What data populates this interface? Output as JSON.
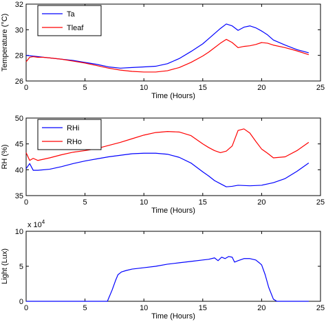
{
  "chart_data": [
    {
      "type": "line",
      "xlabel": "Time (Hours)",
      "ylabel": "Temperature (°C)",
      "xlim": [
        0,
        25
      ],
      "ylim": [
        26,
        32
      ],
      "xticks": [
        "0",
        "5",
        "10",
        "15",
        "20",
        "25"
      ],
      "yticks": [
        "26",
        "28",
        "30",
        "32"
      ],
      "legend_position": "top-left",
      "grid": false,
      "series": [
        {
          "name": "Ta",
          "color": "#0000ff",
          "x": [
            0,
            0.5,
            1,
            1.5,
            2,
            3,
            4,
            5,
            6,
            7,
            8,
            9,
            10,
            11,
            12,
            13,
            14,
            15,
            15.5,
            16,
            16.5,
            17,
            17.5,
            18,
            18.5,
            19,
            19.5,
            20,
            20.5,
            21,
            22,
            23,
            24
          ],
          "y": [
            28.0,
            27.95,
            27.9,
            27.85,
            27.8,
            27.7,
            27.6,
            27.45,
            27.3,
            27.1,
            27.0,
            27.05,
            27.1,
            27.15,
            27.35,
            27.75,
            28.3,
            28.9,
            29.3,
            29.7,
            30.1,
            30.45,
            30.3,
            29.95,
            30.2,
            30.3,
            30.15,
            29.9,
            29.6,
            29.2,
            28.8,
            28.45,
            28.2
          ]
        },
        {
          "name": "Tleaf",
          "color": "#ff0000",
          "x": [
            0,
            0.3,
            0.6,
            1,
            1.5,
            2,
            3,
            4,
            5,
            6,
            7,
            8,
            9,
            10,
            11,
            12,
            13,
            14,
            15,
            15.5,
            16,
            16.5,
            17,
            17.5,
            18,
            18.5,
            19,
            19.5,
            20,
            20.5,
            21,
            22,
            23,
            24
          ],
          "y": [
            27.5,
            27.85,
            27.9,
            27.85,
            27.85,
            27.8,
            27.7,
            27.55,
            27.4,
            27.2,
            27.0,
            26.85,
            26.75,
            26.7,
            26.7,
            26.8,
            27.05,
            27.45,
            27.95,
            28.25,
            28.6,
            28.95,
            29.25,
            29.0,
            28.6,
            28.7,
            28.75,
            28.85,
            29.0,
            28.95,
            28.8,
            28.6,
            28.35,
            28.05
          ]
        }
      ]
    },
    {
      "type": "line",
      "xlabel": "Time (Hours)",
      "ylabel": "RH (%)",
      "xlim": [
        0,
        25
      ],
      "ylim": [
        35,
        50
      ],
      "xticks": [
        "0",
        "5",
        "10",
        "15",
        "20",
        "25"
      ],
      "yticks": [
        "35",
        "40",
        "45",
        "50"
      ],
      "legend_position": "top-left",
      "grid": false,
      "series": [
        {
          "name": "RHi",
          "color": "#0000ff",
          "x": [
            0,
            0.3,
            0.6,
            1,
            2,
            3,
            4,
            5,
            6,
            7,
            8,
            9,
            10,
            11,
            12,
            13,
            14,
            15,
            15.5,
            16,
            16.5,
            17,
            17.5,
            18,
            19,
            20,
            21,
            22,
            23,
            24
          ],
          "y": [
            40.2,
            41.2,
            39.9,
            39.9,
            40.1,
            40.6,
            41.2,
            41.7,
            42.1,
            42.5,
            42.8,
            43.1,
            43.2,
            43.2,
            43.0,
            42.4,
            41.3,
            39.6,
            38.8,
            37.9,
            37.3,
            36.7,
            36.8,
            37.0,
            36.9,
            37.0,
            37.5,
            38.3,
            39.7,
            41.3
          ]
        },
        {
          "name": "RHo",
          "color": "#ff0000",
          "x": [
            0,
            0.3,
            0.6,
            1,
            2,
            3,
            4,
            5,
            6,
            7,
            8,
            9,
            10,
            11,
            12,
            13,
            14,
            15,
            15.5,
            16,
            16.5,
            17,
            17.5,
            18,
            18.5,
            19,
            19.5,
            20,
            20.5,
            21,
            22,
            23,
            24
          ],
          "y": [
            43.3,
            41.8,
            42.2,
            41.8,
            42.3,
            42.9,
            43.4,
            43.7,
            44.1,
            44.7,
            45.3,
            46.0,
            46.7,
            47.2,
            47.4,
            47.3,
            46.6,
            45.0,
            44.3,
            43.7,
            43.3,
            43.6,
            44.6,
            47.6,
            47.9,
            47.1,
            45.5,
            44.0,
            43.2,
            42.3,
            42.5,
            43.7,
            45.3
          ]
        }
      ]
    },
    {
      "type": "line",
      "xlabel": "Time (Hours)",
      "ylabel": "Light (Lux)",
      "y_multiplier": "x 10^4",
      "xlim": [
        0,
        25
      ],
      "ylim": [
        0,
        10
      ],
      "xticks": [
        "0",
        "5",
        "10",
        "15",
        "20",
        "25"
      ],
      "yticks": [
        "0",
        "5",
        "10"
      ],
      "grid": false,
      "series": [
        {
          "color": "#0000ff",
          "x": [
            0,
            6.9,
            7.3,
            7.6,
            7.8,
            8.1,
            8.5,
            9,
            10,
            11,
            12,
            13,
            14,
            15,
            15.5,
            16,
            16.3,
            16.6,
            16.9,
            17.2,
            17.5,
            17.7,
            18,
            18.5,
            19,
            19.5,
            19.8,
            20.0,
            20.3,
            20.6,
            21.0,
            21.3,
            22,
            24
          ],
          "y": [
            0,
            0,
            1.6,
            3.0,
            3.8,
            4.2,
            4.4,
            4.6,
            4.8,
            5.0,
            5.3,
            5.5,
            5.7,
            5.9,
            6.0,
            6.2,
            5.8,
            6.3,
            6.1,
            6.4,
            6.3,
            5.6,
            5.8,
            6.1,
            6.1,
            5.9,
            5.5,
            5.2,
            3.8,
            2.0,
            0.3,
            0,
            0,
            0
          ]
        }
      ]
    }
  ]
}
